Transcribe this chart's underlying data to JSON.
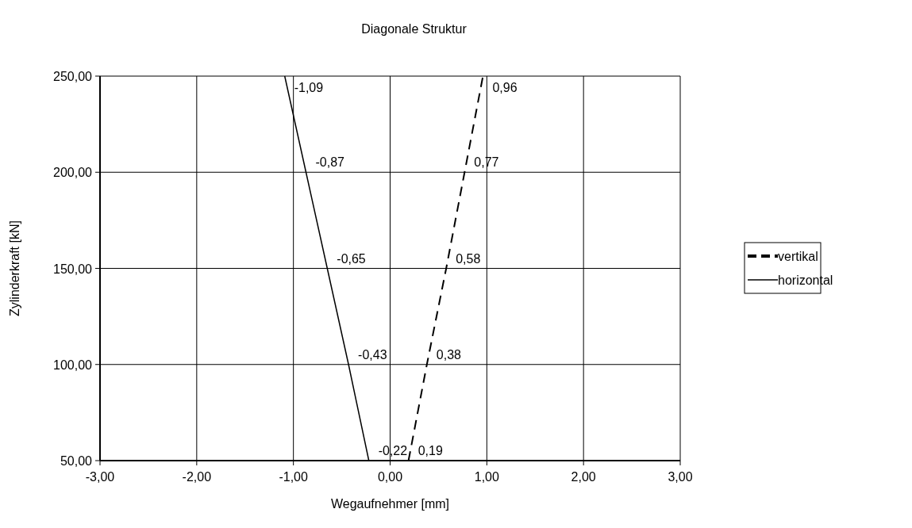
{
  "chart_data": {
    "type": "line",
    "title": "Diagonale Struktur",
    "xlabel": "Wegaufnehmer [mm]",
    "ylabel": "Zylinderkraft [kN]",
    "xlim": [
      -3,
      3
    ],
    "xticks": [
      {
        "value": -3,
        "label": "-3,00"
      },
      {
        "value": -2,
        "label": "-2,00"
      },
      {
        "value": -1,
        "label": "-1,00"
      },
      {
        "value": 0,
        "label": "0,00"
      },
      {
        "value": 1,
        "label": "1,00"
      },
      {
        "value": 2,
        "label": "2,00"
      },
      {
        "value": 3,
        "label": "3,00"
      }
    ],
    "ylim": [
      50,
      250
    ],
    "yticks": [
      {
        "value": 50,
        "label": "50,00"
      },
      {
        "value": 100,
        "label": "100,00"
      },
      {
        "value": 150,
        "label": "150,00"
      },
      {
        "value": 200,
        "label": "200,00"
      },
      {
        "value": 250,
        "label": "250,00"
      }
    ],
    "grid": true,
    "legend": "right",
    "series": [
      {
        "name": "vertikal",
        "color": "#000000",
        "line_style": "dashed",
        "x": [
          0.19,
          0.38,
          0.58,
          0.77,
          0.96
        ],
        "values": [
          50,
          100,
          150,
          200,
          250
        ]
      },
      {
        "name": "horizontal",
        "color": "#000000",
        "line_style": "solid",
        "x": [
          -0.22,
          -0.43,
          -0.65,
          -0.87,
          -1.09
        ],
        "values": [
          50,
          100,
          150,
          200,
          250
        ]
      }
    ],
    "annotations": [
      {
        "text": "0,19",
        "x": 0.19,
        "y": 50
      },
      {
        "text": "0,38",
        "x": 0.38,
        "y": 100
      },
      {
        "text": "0,58",
        "x": 0.58,
        "y": 150
      },
      {
        "text": "0,77",
        "x": 0.77,
        "y": 200
      },
      {
        "text": "0,96",
        "x": 0.96,
        "y": 250
      },
      {
        "text": "-0,22",
        "x": -0.22,
        "y": 50
      },
      {
        "text": "-0,43",
        "x": -0.43,
        "y": 100
      },
      {
        "text": "-0,65",
        "x": -0.65,
        "y": 150
      },
      {
        "text": "-0,87",
        "x": -0.87,
        "y": 200
      },
      {
        "text": "-1,09",
        "x": -1.09,
        "y": 250
      }
    ]
  }
}
